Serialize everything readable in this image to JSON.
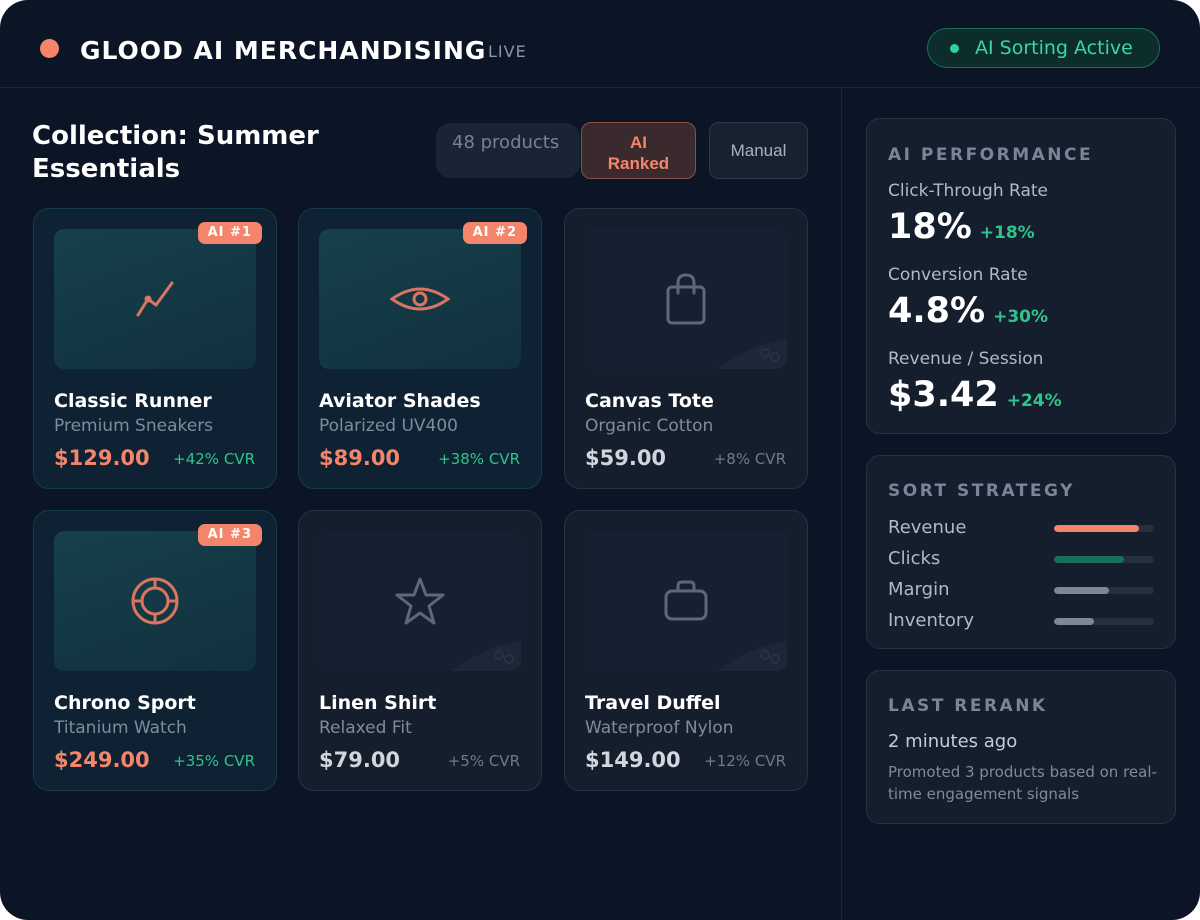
{
  "app": {
    "title": "GLOOD AI MERCHANDISING",
    "live_label": "LIVE",
    "sorting_status": "AI Sorting Active",
    "colors": {
      "accent": "#f4856b",
      "success": "#2bd49a",
      "background": "#0b1526"
    }
  },
  "collection": {
    "title": "Collection: Summer Essentials",
    "count_label": "48 products",
    "mode_ai_label": "AI Ranked",
    "mode_manual_label": "Manual",
    "active_mode": "AI Ranked"
  },
  "products": [
    {
      "badge": "AI #1",
      "name": "Classic Runner",
      "subtitle": "Premium Sneakers",
      "price": "$129.00",
      "cvr": "+42% CVR",
      "icon": "trend-line-icon",
      "ai_ranked": true
    },
    {
      "badge": "AI #2",
      "name": "Aviator Shades",
      "subtitle": "Polarized UV400",
      "price": "$89.00",
      "cvr": "+38% CVR",
      "icon": "eye-icon",
      "ai_ranked": true
    },
    {
      "badge": "",
      "name": "Canvas Tote",
      "subtitle": "Organic Cotton",
      "price": "$59.00",
      "cvr": "+8% CVR",
      "icon": "shopping-bag-icon",
      "ai_ranked": false
    },
    {
      "badge": "AI #3",
      "name": "Chrono Sport",
      "subtitle": "Titanium Watch",
      "price": "$249.00",
      "cvr": "+35% CVR",
      "icon": "target-icon",
      "ai_ranked": true
    },
    {
      "badge": "",
      "name": "Linen Shirt",
      "subtitle": "Relaxed Fit",
      "price": "$79.00",
      "cvr": "+5% CVR",
      "icon": "star-icon",
      "ai_ranked": false
    },
    {
      "badge": "",
      "name": "Travel Duffel",
      "subtitle": "Waterproof Nylon",
      "price": "$149.00",
      "cvr": "+12% CVR",
      "icon": "briefcase-icon",
      "ai_ranked": false
    }
  ],
  "performance": {
    "title": "AI PERFORMANCE",
    "metrics": [
      {
        "label": "Click-Through Rate",
        "value": "18%",
        "delta": "+18%"
      },
      {
        "label": "Conversion Rate",
        "value": "4.8%",
        "delta": "+30%"
      },
      {
        "label": "Revenue / Session",
        "value": "$3.42",
        "delta": "+24%"
      }
    ]
  },
  "sort_strategy": {
    "title": "SORT STRATEGY",
    "weights": [
      {
        "label": "Revenue",
        "level": 0.85,
        "color": "#f4856b"
      },
      {
        "label": "Clicks",
        "level": 0.7,
        "color": "#1a6e5c"
      },
      {
        "label": "Margin",
        "level": 0.55,
        "color": "#7d8797"
      },
      {
        "label": "Inventory",
        "level": 0.4,
        "color": "#7d8797"
      }
    ]
  },
  "last_rerank": {
    "title": "LAST RERANK",
    "time": "2 minutes ago",
    "note": "Promoted 3 products based on real-time engagement signals"
  }
}
